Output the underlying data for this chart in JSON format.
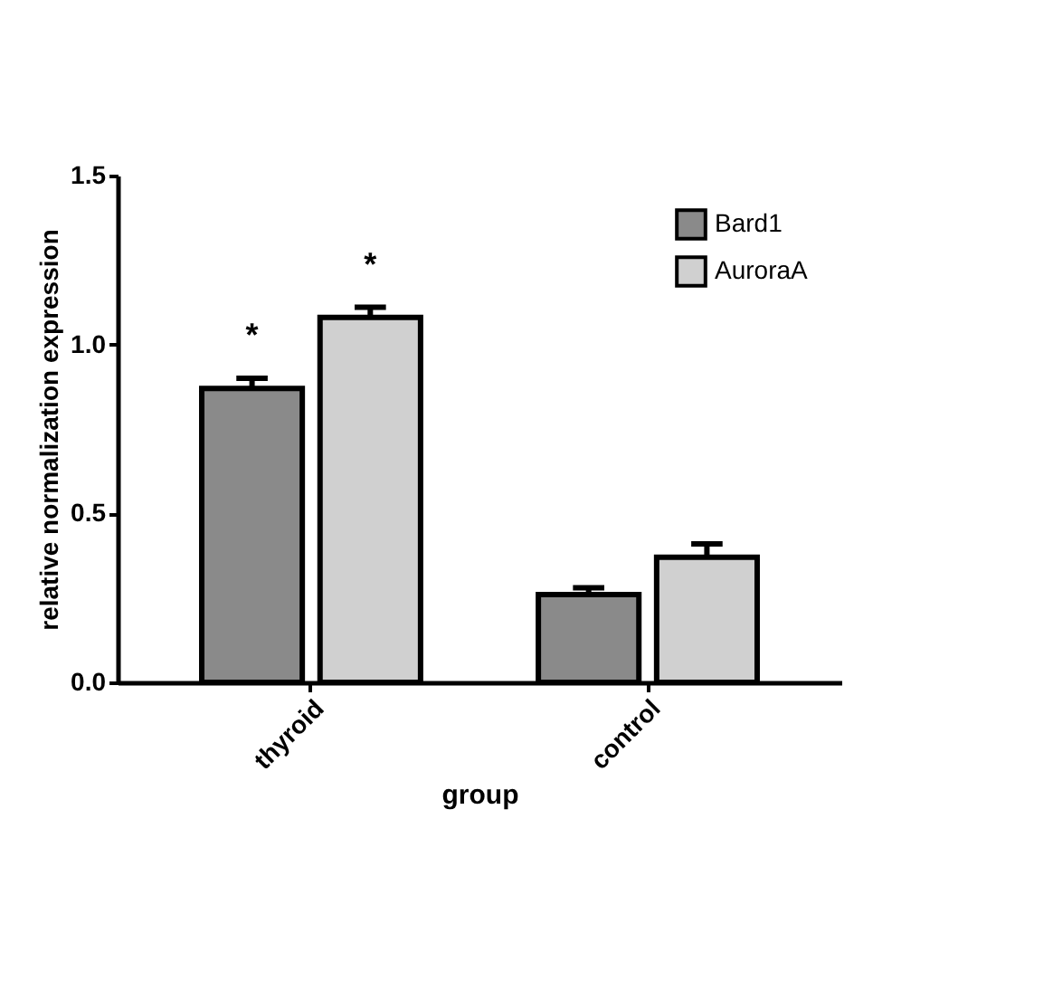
{
  "chart_data": {
    "type": "bar",
    "xlabel": "group",
    "ylabel": "relative normalization expression",
    "categories": [
      "thyroid",
      "control"
    ],
    "series": [
      {
        "name": "Bard1",
        "color": "#8a8a8a",
        "values": [
          0.87,
          0.26
        ],
        "errors": [
          [
            0.87,
            0.9
          ],
          [
            0.26,
            0.28
          ]
        ]
      },
      {
        "name": "AuroraA",
        "color": "#d0d0d0",
        "values": [
          1.08,
          0.37
        ],
        "errors": [
          [
            1.08,
            1.11
          ],
          [
            0.37,
            0.41
          ]
        ]
      }
    ],
    "ylim": [
      0,
      1.5
    ],
    "yticks": [
      {
        "value": 0,
        "label": "0.0"
      },
      {
        "value": 0.5,
        "label": "0.5"
      },
      {
        "value": 1,
        "label": "1.0"
      },
      {
        "value": 1.5,
        "label": "1.5"
      }
    ],
    "annotations": [
      "*",
      "*"
    ],
    "legend": "top right",
    "grid": false
  }
}
